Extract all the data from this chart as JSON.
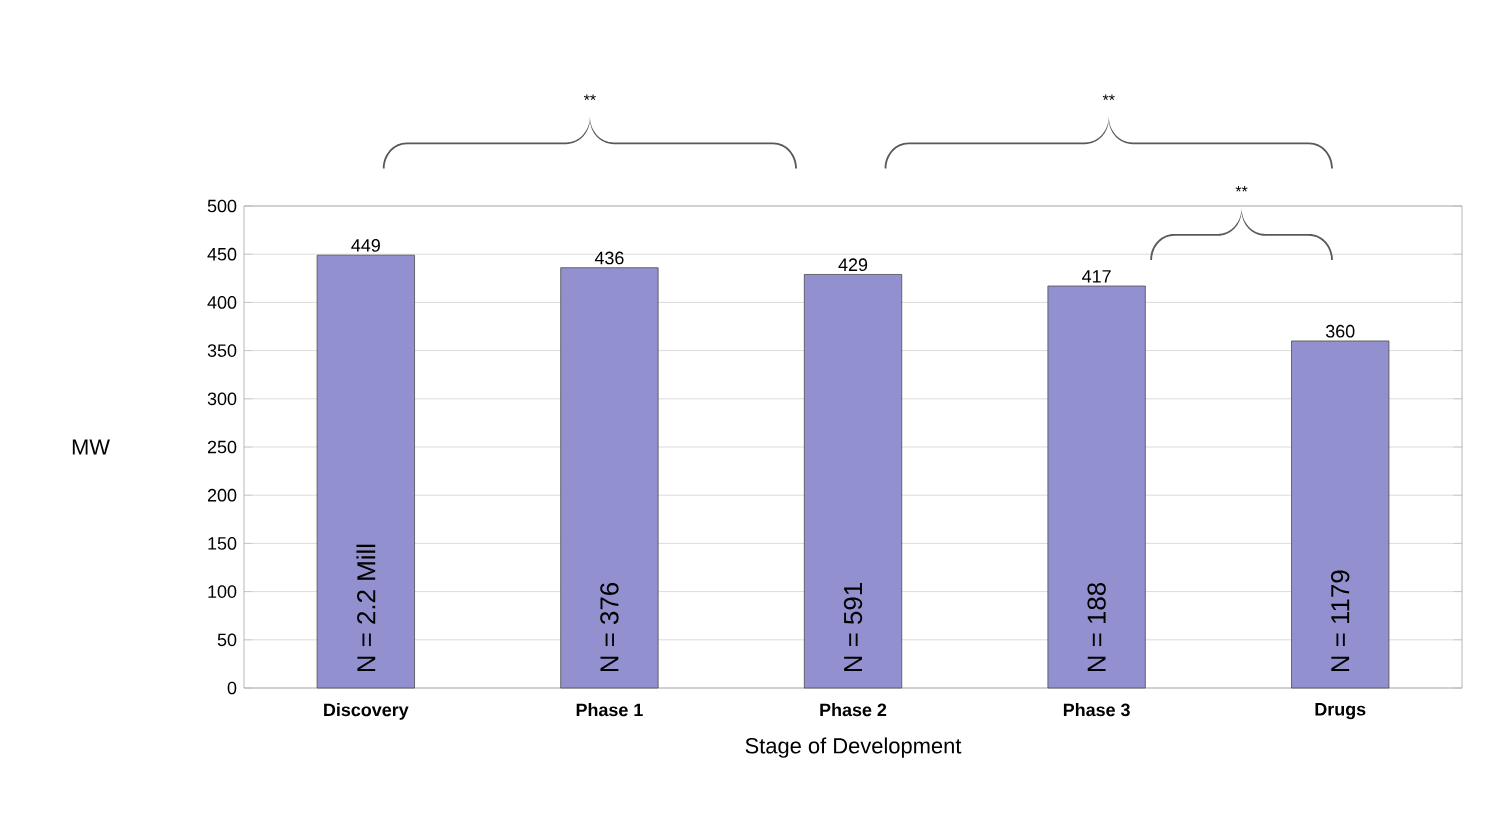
{
  "chart_data": {
    "type": "bar",
    "xlabel": "Stage of Development",
    "ylabel": "MW",
    "categories": [
      "Discovery",
      "Phase 1",
      "Phase 2",
      "Phase 3",
      "Drugs"
    ],
    "values": [
      449,
      436,
      429,
      417,
      360
    ],
    "color": "#9390cf",
    "ylim": [
      0,
      500
    ],
    "yticks": [
      0,
      50,
      100,
      150,
      200,
      250,
      300,
      350,
      400,
      450,
      500
    ],
    "grid": "y",
    "data_labels": true,
    "annotations": [
      "N = 2.2 Mill",
      "N = 376",
      "N = 591",
      "N = 188",
      "N = 1179",
      "**",
      "**",
      "**"
    ]
  }
}
